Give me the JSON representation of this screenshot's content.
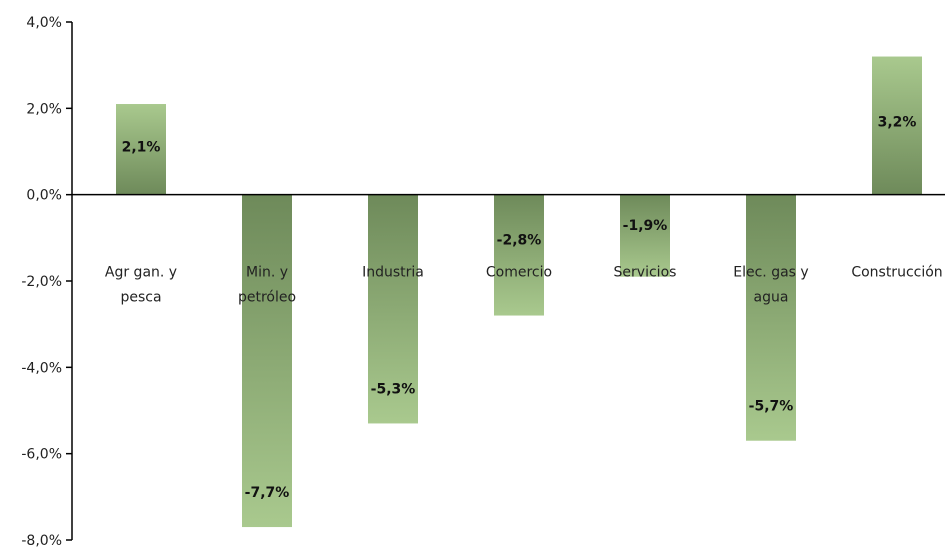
{
  "chart_data": {
    "type": "bar",
    "title": "",
    "xlabel": "",
    "ylabel": "",
    "categories": [
      [
        "Agr gan. y",
        "pesca"
      ],
      [
        "Min. y",
        "petróleo"
      ],
      [
        "Industria"
      ],
      [
        "Comercio"
      ],
      [
        "Servicios"
      ],
      [
        "Elec. gas y",
        "agua"
      ],
      [
        "Construcción"
      ]
    ],
    "values": [
      2.1,
      -7.7,
      -5.3,
      -2.8,
      -1.9,
      -5.7,
      3.2
    ],
    "value_labels": [
      "2,1%",
      "-7,7%",
      "-5,3%",
      "-2,8%",
      "-1,9%",
      "-5,7%",
      "3,2%"
    ],
    "ylim": [
      -8,
      4
    ],
    "yticks": [
      4,
      2,
      0,
      -2,
      -4,
      -6,
      -8
    ],
    "ytick_labels": [
      "4,0%",
      "2,0%",
      "0,0%",
      "-2,0%",
      "-4,0%",
      "-6,0%",
      "-8,0%"
    ],
    "grid": false,
    "legend": "none",
    "colors": {
      "bar_light": "#a9c98e",
      "bar_dark": "#6e8a5a",
      "axis": "#000000"
    }
  }
}
